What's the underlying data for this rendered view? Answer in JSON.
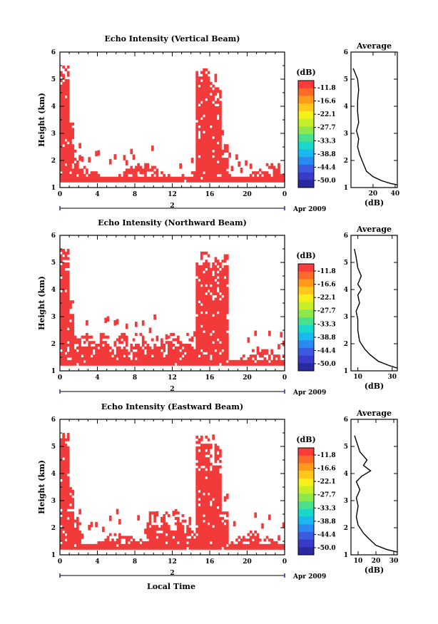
{
  "chart_data": [
    {
      "type": "heatmap",
      "title": "Echo Intensity (Vertical Beam)",
      "ylabel": "Height (km)",
      "xlabel": "",
      "x_ticks": [
        "0",
        "4",
        "8",
        "12",
        "16",
        "20",
        "0"
      ],
      "y_ticks": [
        "1",
        "2",
        "3",
        "4",
        "5",
        "6"
      ],
      "xlim": [
        0,
        24
      ],
      "ylim": [
        1,
        6
      ],
      "date_marker": "2",
      "date_label": "Apr 2009",
      "colorbar": {
        "unit": "(dB)",
        "labels": [
          "-11.8",
          "-16.6",
          "-22.1",
          "-27.7",
          "-33.3",
          "-38.8",
          "-44.4",
          "-50.0"
        ],
        "colors": [
          "#ff3a3a",
          "#ff6a2a",
          "#ff9a1a",
          "#ffc81a",
          "#f5ef1a",
          "#c6ef2a",
          "#8fe84a",
          "#4ae08c",
          "#1ad8c8",
          "#1ab8f0",
          "#2a8af0",
          "#3a5ae0",
          "#3a3ac8",
          "#2a2aa0"
        ]
      },
      "profile": {
        "title": "Average",
        "xlabel": "(dB)",
        "x_ticks": [
          "20",
          "40"
        ],
        "x_tick_values": [
          20,
          40
        ],
        "xlim": [
          0,
          42
        ],
        "y_ticks": [
          "1",
          "2",
          "3",
          "4",
          "5",
          "6"
        ],
        "ylim": [
          1,
          6
        ],
        "points": [
          [
            42,
            1.1
          ],
          [
            36,
            1.15
          ],
          [
            28,
            1.25
          ],
          [
            20,
            1.4
          ],
          [
            14,
            1.6
          ],
          [
            12,
            1.8
          ],
          [
            8,
            2.2
          ],
          [
            6,
            2.5
          ],
          [
            7,
            2.8
          ],
          [
            5,
            3.1
          ],
          [
            7,
            3.4
          ],
          [
            6,
            3.8
          ],
          [
            6,
            4.2
          ],
          [
            7,
            4.6
          ],
          [
            6,
            5.0
          ],
          [
            4,
            5.2
          ],
          [
            2,
            5.4
          ]
        ]
      }
    },
    {
      "type": "heatmap",
      "title": "Echo Intensity (Northward Beam)",
      "ylabel": "Height (km)",
      "xlabel": "",
      "x_ticks": [
        "0",
        "4",
        "8",
        "12",
        "16",
        "20",
        "0"
      ],
      "y_ticks": [
        "1",
        "2",
        "3",
        "4",
        "5",
        "6"
      ],
      "xlim": [
        0,
        24
      ],
      "ylim": [
        1,
        6
      ],
      "date_marker": "2",
      "date_label": "Apr 2009",
      "colorbar": {
        "unit": "(dB)",
        "labels": [
          "-11.8",
          "-16.6",
          "-22.1",
          "-27.7",
          "-33.3",
          "-38.8",
          "-44.4",
          "-50.0"
        ],
        "colors": [
          "#ff3a3a",
          "#ff6a2a",
          "#ff9a1a",
          "#ffc81a",
          "#f5ef1a",
          "#c6ef2a",
          "#8fe84a",
          "#4ae08c",
          "#1ad8c8",
          "#1ab8f0",
          "#2a8af0",
          "#3a5ae0",
          "#3a3ac8",
          "#2a2aa0"
        ]
      },
      "profile": {
        "title": "Average",
        "xlabel": "(dB)",
        "x_ticks": [
          "10",
          "30"
        ],
        "x_tick_values": [
          10,
          30
        ],
        "xlim": [
          6,
          33
        ],
        "y_ticks": [
          "1",
          "2",
          "3",
          "4",
          "5",
          "6"
        ],
        "ylim": [
          1,
          6
        ],
        "points": [
          [
            33,
            1.1
          ],
          [
            28,
            1.2
          ],
          [
            22,
            1.35
          ],
          [
            17,
            1.6
          ],
          [
            14,
            1.8
          ],
          [
            11,
            2.1
          ],
          [
            10,
            2.5
          ],
          [
            10,
            2.9
          ],
          [
            9,
            3.2
          ],
          [
            11,
            3.5
          ],
          [
            10,
            3.8
          ],
          [
            12,
            4.0
          ],
          [
            10,
            4.2
          ],
          [
            12,
            4.5
          ],
          [
            10,
            4.8
          ],
          [
            9,
            5.2
          ],
          [
            8,
            5.5
          ]
        ]
      }
    },
    {
      "type": "heatmap",
      "title": "Echo Intensity (Eastward Beam)",
      "ylabel": "Height (km)",
      "xlabel": "Local Time",
      "x_ticks": [
        "0",
        "4",
        "8",
        "12",
        "16",
        "20",
        "0"
      ],
      "y_ticks": [
        "1",
        "2",
        "3",
        "4",
        "5",
        "6"
      ],
      "xlim": [
        0,
        24
      ],
      "ylim": [
        1,
        6
      ],
      "date_marker": "2",
      "date_label": "Apr 2009",
      "colorbar": {
        "unit": "(dB)",
        "labels": [
          "-11.8",
          "-16.6",
          "-22.1",
          "-27.7",
          "-33.3",
          "-38.8",
          "-44.4",
          "-50.0"
        ],
        "colors": [
          "#ff3a3a",
          "#ff6a2a",
          "#ff9a1a",
          "#ffc81a",
          "#f5ef1a",
          "#c6ef2a",
          "#8fe84a",
          "#4ae08c",
          "#1ad8c8",
          "#1ab8f0",
          "#2a8af0",
          "#3a5ae0",
          "#3a3ac8",
          "#2a2aa0"
        ]
      },
      "profile": {
        "title": "Average",
        "xlabel": "(dB)",
        "x_ticks": [
          "10",
          "20",
          "30"
        ],
        "x_tick_values": [
          10,
          20,
          30
        ],
        "xlim": [
          6,
          32
        ],
        "y_ticks": [
          "1",
          "2",
          "3",
          "4",
          "5",
          "6"
        ],
        "ylim": [
          1,
          6
        ],
        "points": [
          [
            32,
            1.1
          ],
          [
            26,
            1.2
          ],
          [
            20,
            1.35
          ],
          [
            16,
            1.6
          ],
          [
            13,
            1.8
          ],
          [
            10,
            2.1
          ],
          [
            9,
            2.4
          ],
          [
            10,
            2.8
          ],
          [
            9,
            3.1
          ],
          [
            11,
            3.4
          ],
          [
            9,
            3.7
          ],
          [
            12,
            3.9
          ],
          [
            17,
            4.1
          ],
          [
            13,
            4.3
          ],
          [
            15,
            4.5
          ],
          [
            11,
            4.8
          ],
          [
            9,
            5.2
          ],
          [
            8,
            5.4
          ]
        ]
      }
    }
  ]
}
